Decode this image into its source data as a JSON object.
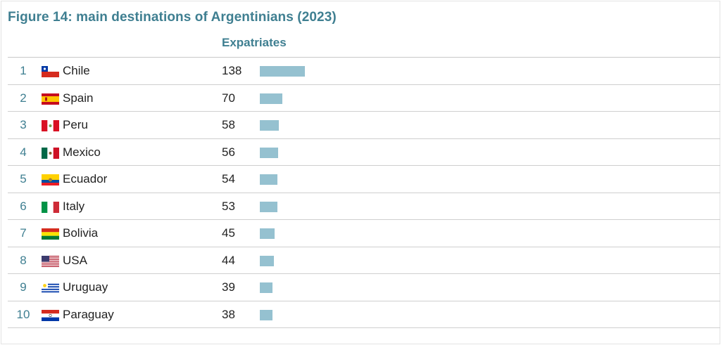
{
  "title": "Figure 14: main destinations of Argentinians (2023)",
  "column_header": "Expatriates",
  "colors": {
    "accent": "#3f7f91",
    "bar": "#95c1d0"
  },
  "chart_data": {
    "type": "bar",
    "title": "Figure 14: main destinations of Argentinians (2023)",
    "ylabel": "Expatriates",
    "categories": [
      "Chile",
      "Spain",
      "Peru",
      "Mexico",
      "Ecuador",
      "Italy",
      "Bolivia",
      "USA",
      "Uruguay",
      "Paraguay"
    ],
    "values": [
      138,
      70,
      58,
      56,
      54,
      53,
      45,
      44,
      39,
      38
    ],
    "ranks": [
      "1",
      "2",
      "3",
      "4",
      "5",
      "6",
      "7",
      "8",
      "9",
      "10"
    ],
    "flags": [
      "chile-flag",
      "spain-flag",
      "peru-flag",
      "mexico-flag",
      "ecuador-flag",
      "italy-flag",
      "bolivia-flag",
      "usa-flag",
      "uruguay-flag",
      "paraguay-flag"
    ],
    "ylim": [
      0,
      138
    ],
    "orientation": "horizontal"
  }
}
